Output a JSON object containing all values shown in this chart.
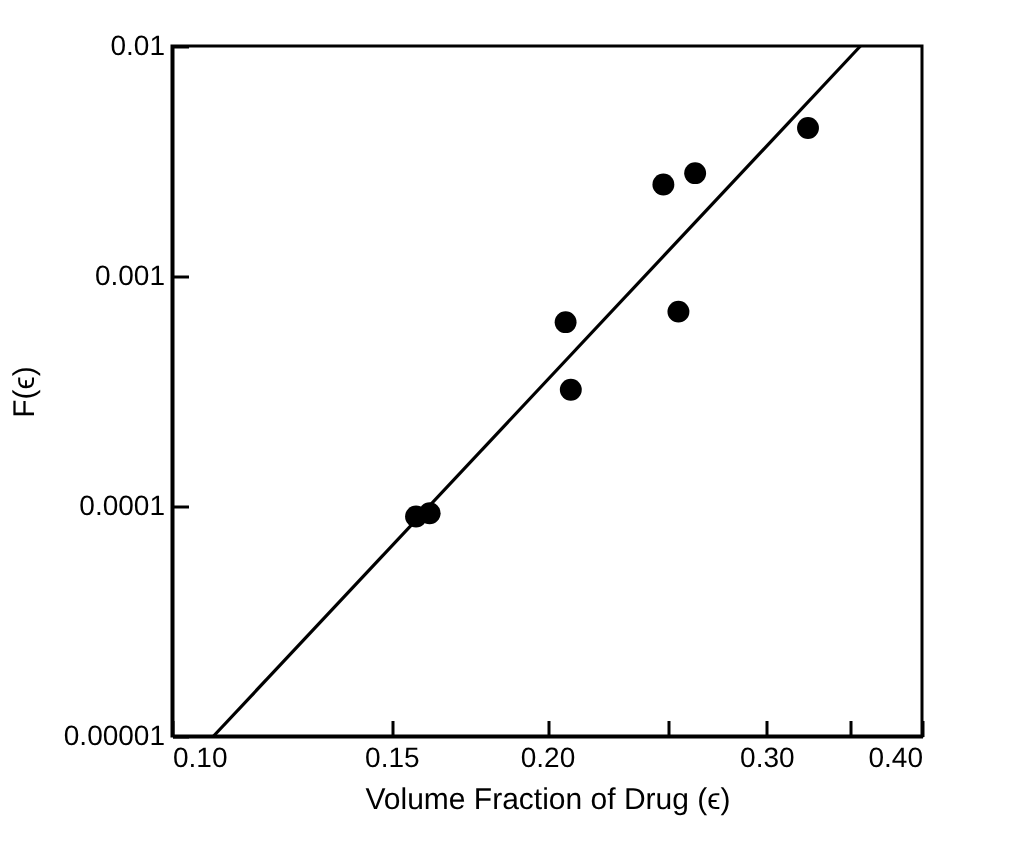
{
  "chart_data": {
    "type": "scatter",
    "xlabel": "Volume Fraction of Drug (ϵ)",
    "ylabel": "F(ϵ)",
    "log": "xy",
    "grid": false,
    "marker": "circle",
    "xlim": [
      0.1,
      0.4
    ],
    "xticks": [
      {
        "value": 0.1,
        "label": "0.10"
      },
      0.15,
      {
        "value": 0.2,
        "label": "0.20"
      },
      {
        "value": 0.25,
        "label": null
      },
      {
        "value": 0.3,
        "label": "0.30"
      },
      {
        "value": 0.35,
        "label": null
      },
      {
        "value": 0.4,
        "label": "0.40"
      }
    ],
    "ylim": [
      1e-05,
      0.01
    ],
    "yticks": [
      {
        "value": 1e-05,
        "label": "0.00001"
      },
      0.0001,
      0.001,
      0.01
    ],
    "series": [
      {
        "color": "#000000",
        "x": [
          0.157,
          0.161,
          0.207,
          0.209,
          0.248,
          0.255,
          0.263,
          0.324
        ],
        "values": [
          9e-05,
          9.3e-05,
          0.00063,
          0.00032,
          0.0025,
          0.0007,
          0.0028,
          0.0044
        ]
      },
      {
        "type": "line",
        "marker": "none",
        "color": "#000000",
        "x": [
          0.108,
          0.357
        ],
        "values": [
          1e-05,
          0.01
        ]
      }
    ]
  }
}
